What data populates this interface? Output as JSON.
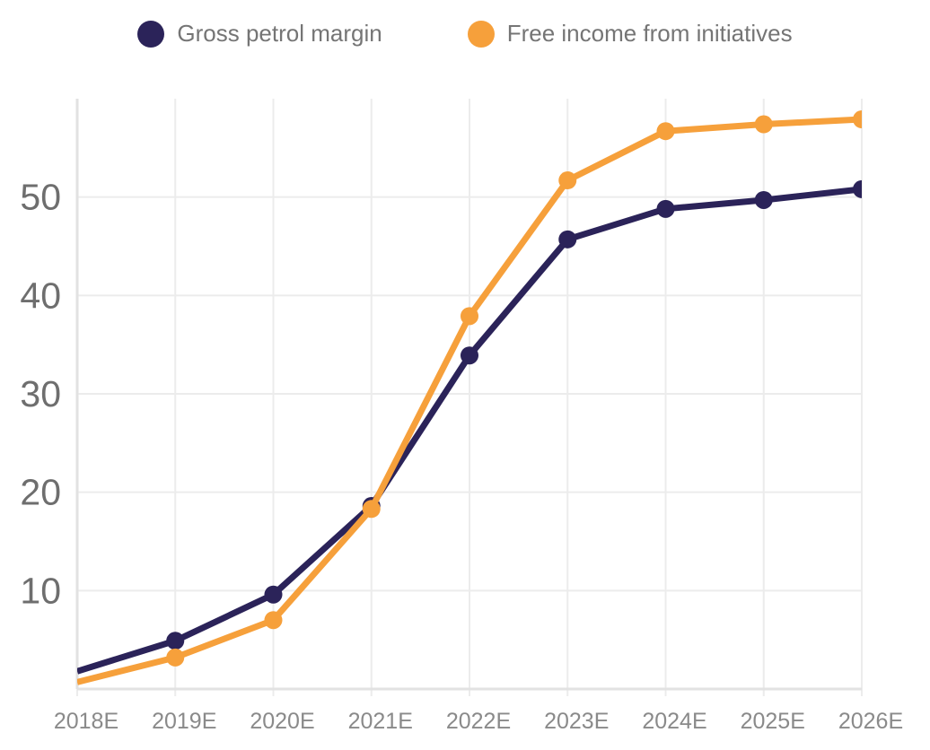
{
  "chart_data": {
    "type": "line",
    "title": "",
    "xlabel": "",
    "ylabel": "",
    "categories": [
      "2018E",
      "2019E",
      "2020E",
      "2021E",
      "2022E",
      "2023E",
      "2024E",
      "2025E",
      "2026E"
    ],
    "series": [
      {
        "name": "Gross petrol margin",
        "color": "#2B2359",
        "values": [
          1.8,
          4.9,
          9.6,
          18.6,
          33.9,
          45.7,
          48.8,
          49.7,
          50.8
        ]
      },
      {
        "name": "Free income from initiatives",
        "color": "#F6A03B",
        "values": [
          0.7,
          3.2,
          7.0,
          18.3,
          37.9,
          51.7,
          56.7,
          57.4,
          57.9
        ]
      }
    ],
    "ylim": [
      0,
      60
    ],
    "yticks": [
      10,
      20,
      30,
      40,
      50
    ],
    "grid": true,
    "legend_position": "top",
    "marker": "circle"
  },
  "colors": {
    "background": "#FFFFFF",
    "gridline": "#ECECEC",
    "axis_line": "#E2E2E2",
    "x_tick_text": "#8A8A8A",
    "y_tick_text": "#6E6E6E",
    "legend_text": "#757575"
  }
}
